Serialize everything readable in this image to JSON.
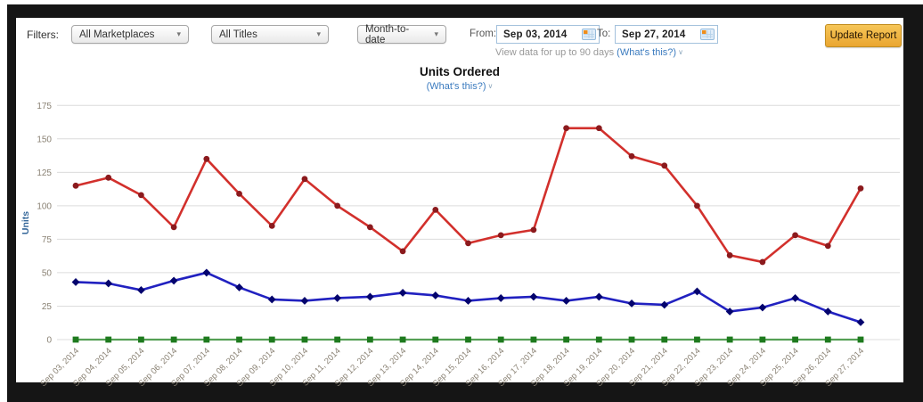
{
  "icons": {
    "dropdown_caret": "▾",
    "chevron_down": "∨"
  },
  "colors": {
    "frame": "#151515",
    "link_blue": "#3b7bbf",
    "update_button": "#eead2d",
    "grid_line": "#dcdcdc",
    "axis_text": "#8a8274"
  },
  "filter_bar": {
    "filters_label": "Filters:",
    "marketplace_value": "All Marketplaces",
    "titles_value": "All Titles",
    "date_range_value": "Month-to-date",
    "from_label": "From:",
    "from_value": "Sep 03, 2014",
    "to_label": "To:",
    "to_value": "Sep 27, 2014",
    "view_data_text": "View data for up to 90 days ",
    "view_data_link": "(What's this?)",
    "update_button_label": "Update Report"
  },
  "chart_header": {
    "title": "Units Ordered",
    "subtitle_link": "(What's this?)"
  },
  "chart_data": {
    "type": "line",
    "title": "Units Ordered",
    "xlabel": "",
    "ylabel": "Units",
    "ylabel_color": "#336699",
    "ylim": [
      0,
      175
    ],
    "yticks": [
      0,
      25,
      50,
      75,
      100,
      125,
      150,
      175
    ],
    "grid": true,
    "legend_position": "none",
    "xtick_rotation": -45,
    "categories": [
      "Sep 03, 2014",
      "Sep 04, 2014",
      "Sep 05, 2014",
      "Sep 06, 2014",
      "Sep 07, 2014",
      "Sep 08, 2014",
      "Sep 09, 2014",
      "Sep 10, 2014",
      "Sep 11, 2014",
      "Sep 12, 2014",
      "Sep 13, 2014",
      "Sep 14, 2014",
      "Sep 15, 2014",
      "Sep 16, 2014",
      "Sep 17, 2014",
      "Sep 18, 2014",
      "Sep 19, 2014",
      "Sep 20, 2014",
      "Sep 21, 2014",
      "Sep 22, 2014",
      "Sep 23, 2014",
      "Sep 24, 2014",
      "Sep 25, 2014",
      "Sep 26, 2014",
      "Sep 27, 2014"
    ],
    "series": [
      {
        "name": "green-line-series",
        "color": "#55a055",
        "marker": "square",
        "marker_color": "#1e7a1e",
        "values": [
          0,
          0,
          0,
          0,
          0,
          0,
          0,
          0,
          0,
          0,
          0,
          0,
          0,
          0,
          0,
          0,
          0,
          0,
          0,
          0,
          0,
          0,
          0,
          0,
          0
        ]
      },
      {
        "name": "blue-line-series",
        "color": "#2121c0",
        "marker": "diamond",
        "marker_color": "#04046e",
        "values": [
          43,
          42,
          37,
          44,
          50,
          39,
          30,
          29,
          31,
          32,
          35,
          33,
          29,
          31,
          32,
          29,
          32,
          27,
          26,
          36,
          21,
          24,
          31,
          21,
          13
        ]
      },
      {
        "name": "red-line-series",
        "color": "#d2302c",
        "marker": "circle",
        "marker_color": "#8b1a1d",
        "values": [
          115,
          121,
          108,
          84,
          135,
          109,
          85,
          120,
          100,
          84,
          66,
          97,
          72,
          78,
          82,
          158,
          158,
          137,
          130,
          100,
          63,
          58,
          78,
          70,
          113
        ]
      }
    ]
  }
}
